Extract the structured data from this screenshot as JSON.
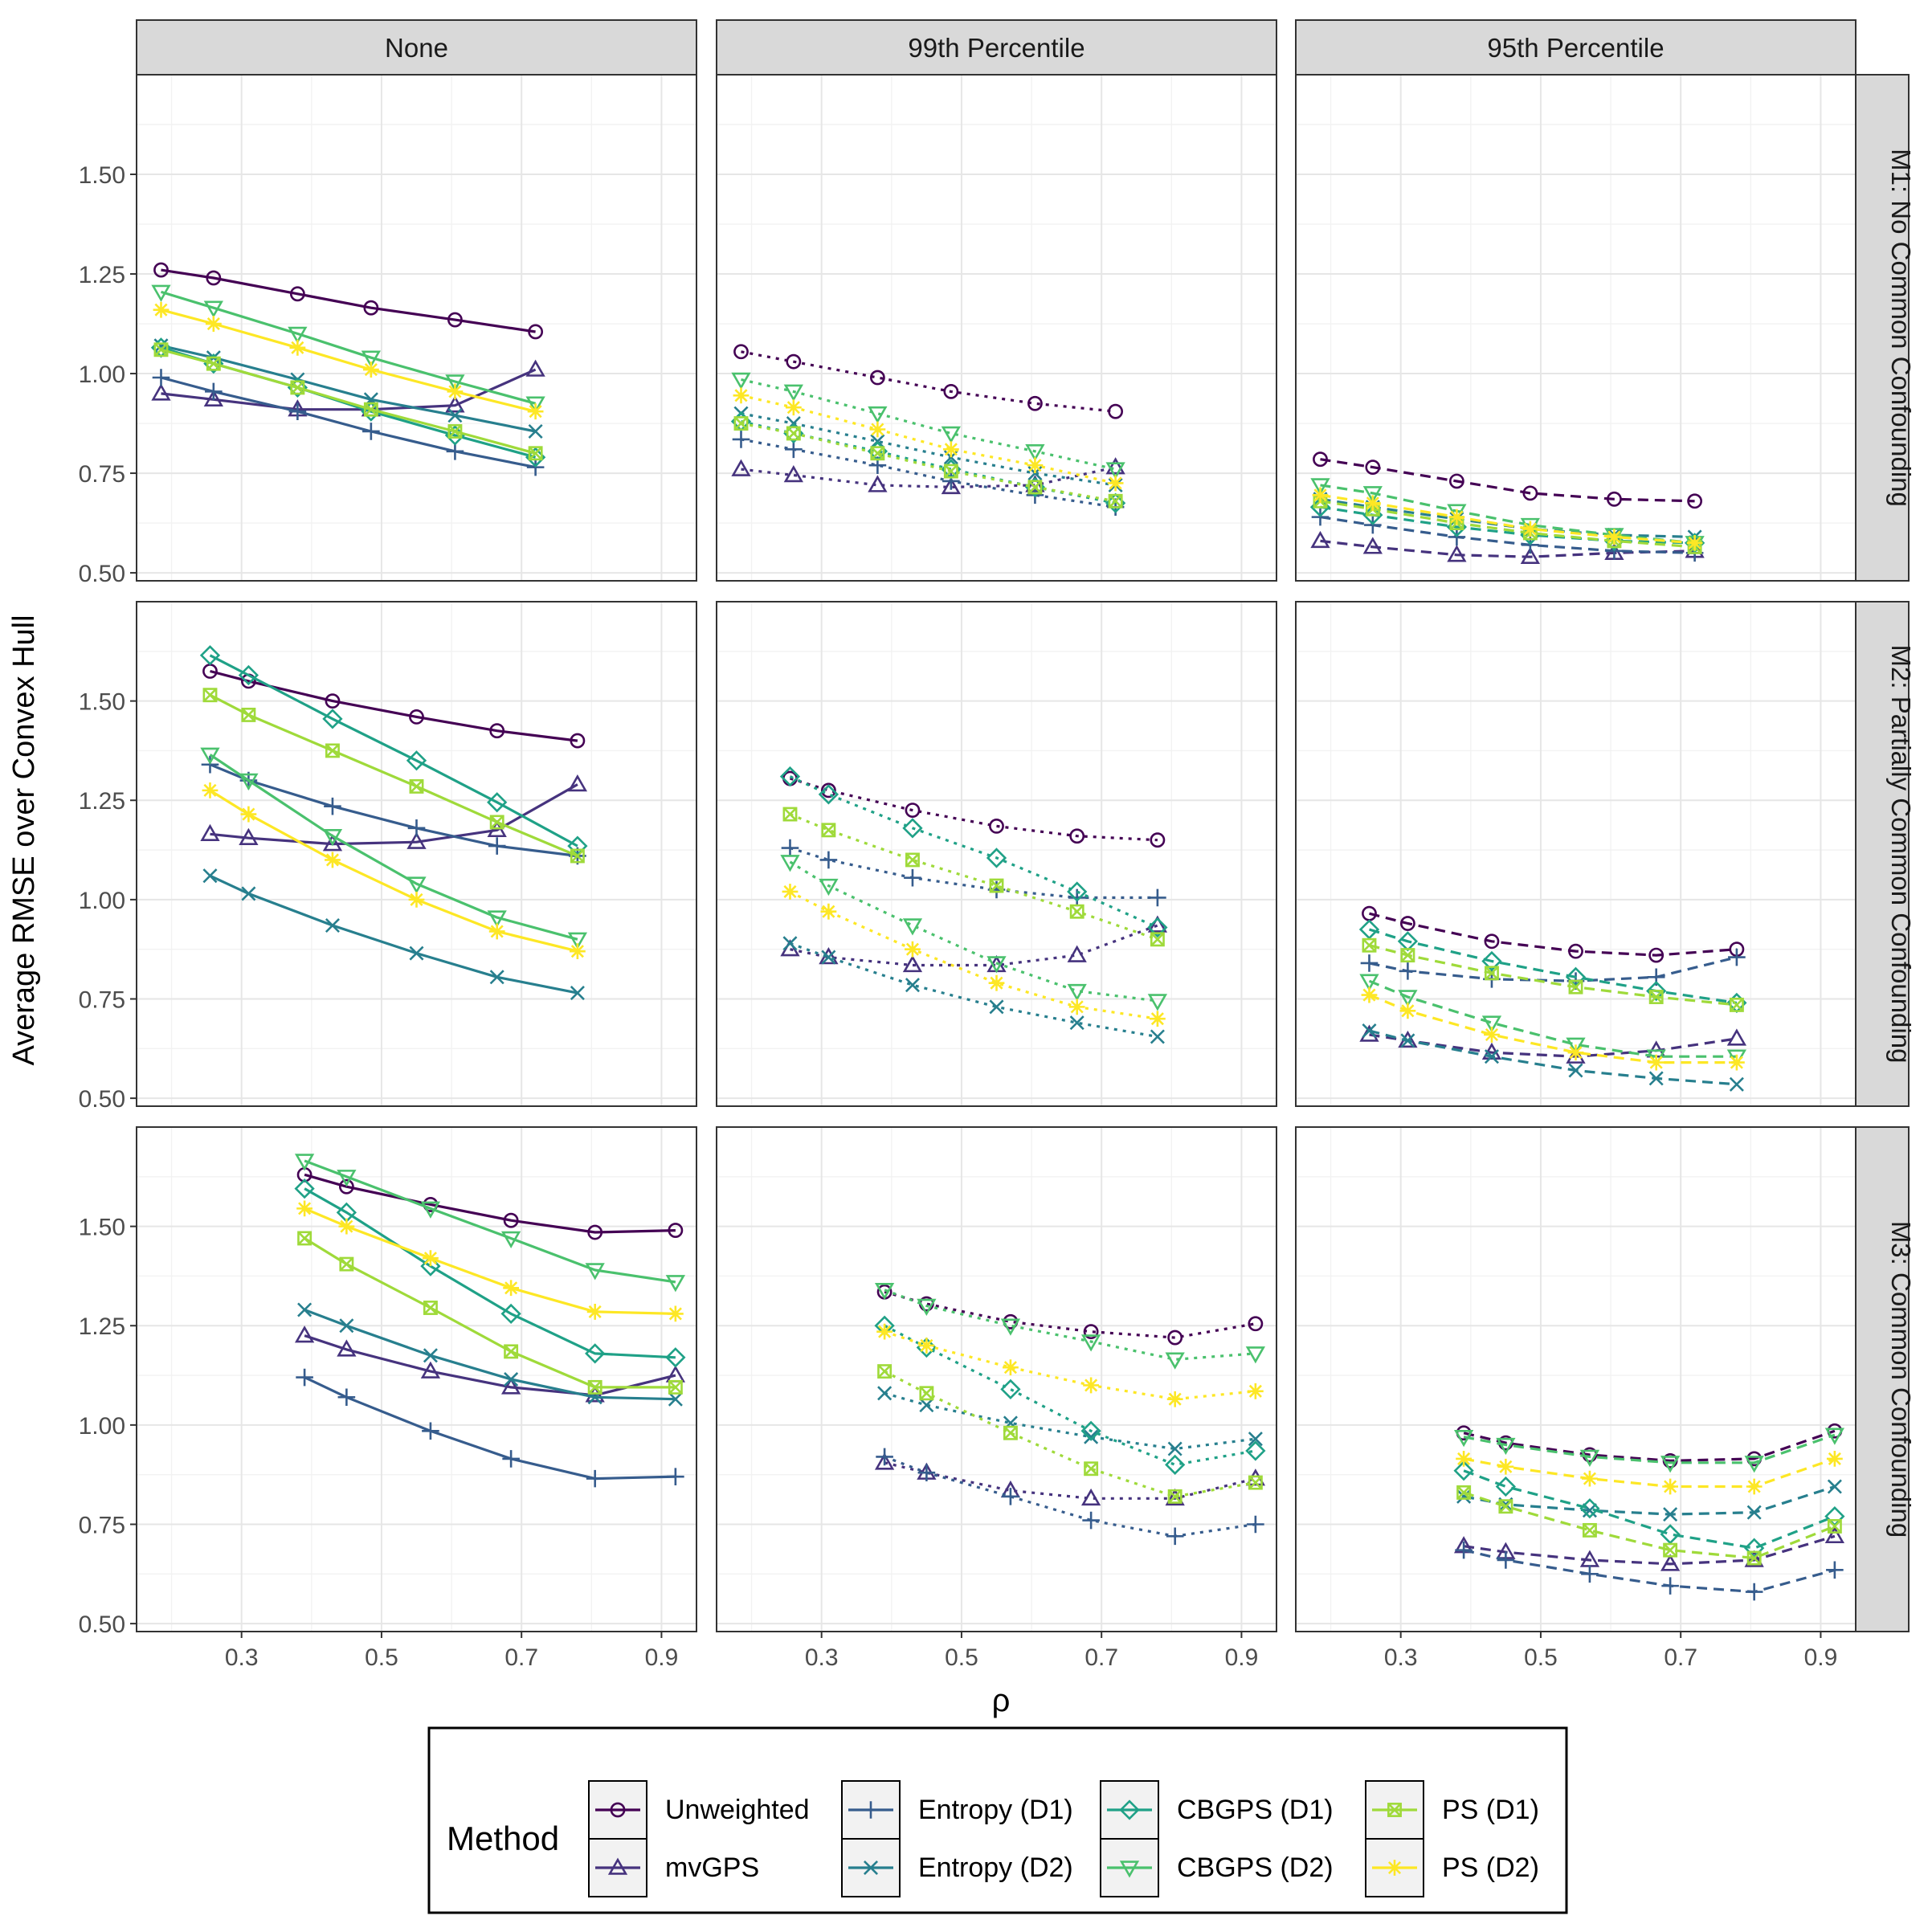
{
  "chart_data": {
    "type": "line",
    "xlabel": "ρ",
    "ylabel": "Average RMSE over Convex Hull",
    "xlim": [
      0.15,
      0.95
    ],
    "ylim": [
      0.48,
      1.75
    ],
    "x_ticks": [
      0.3,
      0.5,
      0.7,
      0.9
    ],
    "x_tick_labels": [
      "0.3",
      "0.5",
      "0.7",
      "0.9"
    ],
    "y_ticks": [
      0.5,
      0.75,
      1.0,
      1.25,
      1.5
    ],
    "y_tick_labels": [
      "0.50",
      "0.75",
      "1.00",
      "1.25",
      "1.50"
    ],
    "col_strips": [
      "None",
      "99th Percentile",
      "95th Percentile"
    ],
    "row_strips": [
      "M1: No Common Confounding",
      "M2: Partially Common Confounding",
      "M3: Common Confounding"
    ],
    "legend": {
      "title": "Method",
      "position": "bottom",
      "entries": [
        "Unweighted",
        "mvGPS",
        "Entropy (D1)",
        "Entropy (D2)",
        "CBGPS (D1)",
        "CBGPS (D2)",
        "PS (D1)",
        "PS (D2)"
      ]
    },
    "methods": [
      {
        "name": "Unweighted",
        "color": "#440154",
        "marker": "circle"
      },
      {
        "name": "mvGPS",
        "color": "#46337E",
        "marker": "triangle"
      },
      {
        "name": "Entropy (D1)",
        "color": "#365C8D",
        "marker": "plus"
      },
      {
        "name": "Entropy (D2)",
        "color": "#277F8E",
        "marker": "cross"
      },
      {
        "name": "CBGPS (D1)",
        "color": "#1FA187",
        "marker": "diamond"
      },
      {
        "name": "CBGPS (D2)",
        "color": "#4AC16D",
        "marker": "triangle-down"
      },
      {
        "name": "PS (D1)",
        "color": "#9FDA3A",
        "marker": "square-cross"
      },
      {
        "name": "PS (D2)",
        "color": "#FDE725",
        "marker": "asterisk"
      }
    ],
    "panels": [
      {
        "row": 0,
        "col": 0,
        "line_style": "solid",
        "x": [
          0.185,
          0.26,
          0.38,
          0.485,
          0.605,
          0.72
        ],
        "series": [
          {
            "name": "Unweighted",
            "values": [
              1.26,
              1.24,
              1.2,
              1.165,
              1.135,
              1.105
            ]
          },
          {
            "name": "mvGPS",
            "values": [
              0.95,
              0.935,
              0.91,
              0.91,
              0.92,
              1.01
            ]
          },
          {
            "name": "Entropy (D1)",
            "values": [
              0.99,
              0.955,
              0.905,
              0.855,
              0.805,
              0.765
            ]
          },
          {
            "name": "Entropy (D2)",
            "values": [
              1.07,
              1.04,
              0.985,
              0.935,
              0.895,
              0.855
            ]
          },
          {
            "name": "CBGPS (D1)",
            "values": [
              1.065,
              1.025,
              0.965,
              0.905,
              0.845,
              0.79
            ]
          },
          {
            "name": "CBGPS (D2)",
            "values": [
              1.205,
              1.165,
              1.1,
              1.04,
              0.98,
              0.925
            ]
          },
          {
            "name": "PS (D1)",
            "values": [
              1.06,
              1.025,
              0.965,
              0.91,
              0.855,
              0.8
            ]
          },
          {
            "name": "PS (D2)",
            "values": [
              1.16,
              1.125,
              1.065,
              1.01,
              0.955,
              0.905
            ]
          }
        ]
      },
      {
        "row": 0,
        "col": 1,
        "line_style": "dotted",
        "x": [
          0.185,
          0.26,
          0.38,
          0.485,
          0.605,
          0.72
        ],
        "series": [
          {
            "name": "Unweighted",
            "values": [
              1.055,
              1.03,
              0.99,
              0.955,
              0.925,
              0.905
            ]
          },
          {
            "name": "mvGPS",
            "values": [
              0.76,
              0.745,
              0.72,
              0.715,
              0.72,
              0.765
            ]
          },
          {
            "name": "Entropy (D1)",
            "values": [
              0.835,
              0.81,
              0.77,
              0.73,
              0.695,
              0.665
            ]
          },
          {
            "name": "Entropy (D2)",
            "values": [
              0.9,
              0.875,
              0.83,
              0.79,
              0.75,
              0.72
            ]
          },
          {
            "name": "CBGPS (D1)",
            "values": [
              0.88,
              0.85,
              0.805,
              0.76,
              0.715,
              0.675
            ]
          },
          {
            "name": "CBGPS (D2)",
            "values": [
              0.985,
              0.955,
              0.9,
              0.85,
              0.805,
              0.76
            ]
          },
          {
            "name": "PS (D1)",
            "values": [
              0.875,
              0.85,
              0.8,
              0.755,
              0.715,
              0.68
            ]
          },
          {
            "name": "PS (D2)",
            "values": [
              0.945,
              0.915,
              0.86,
              0.81,
              0.77,
              0.725
            ]
          }
        ]
      },
      {
        "row": 0,
        "col": 2,
        "line_style": "dashed",
        "x": [
          0.185,
          0.26,
          0.38,
          0.485,
          0.605,
          0.72
        ],
        "series": [
          {
            "name": "Unweighted",
            "values": [
              0.785,
              0.765,
              0.73,
              0.7,
              0.685,
              0.68
            ]
          },
          {
            "name": "mvGPS",
            "values": [
              0.58,
              0.565,
              0.545,
              0.54,
              0.55,
              0.555
            ]
          },
          {
            "name": "Entropy (D1)",
            "values": [
              0.64,
              0.62,
              0.59,
              0.57,
              0.555,
              0.55
            ]
          },
          {
            "name": "Entropy (D2)",
            "values": [
              0.685,
              0.665,
              0.635,
              0.61,
              0.595,
              0.59
            ]
          },
          {
            "name": "CBGPS (D1)",
            "values": [
              0.665,
              0.645,
              0.615,
              0.595,
              0.58,
              0.575
            ]
          },
          {
            "name": "CBGPS (D2)",
            "values": [
              0.72,
              0.7,
              0.655,
              0.62,
              0.595,
              0.575
            ]
          },
          {
            "name": "PS (D1)",
            "values": [
              0.68,
              0.66,
              0.625,
              0.6,
              0.58,
              0.565
            ]
          },
          {
            "name": "PS (D2)",
            "values": [
              0.695,
              0.675,
              0.64,
              0.61,
              0.59,
              0.575
            ]
          }
        ]
      },
      {
        "row": 1,
        "col": 0,
        "line_style": "solid",
        "x": [
          0.255,
          0.31,
          0.43,
          0.55,
          0.665,
          0.78
        ],
        "series": [
          {
            "name": "Unweighted",
            "values": [
              1.575,
              1.55,
              1.5,
              1.46,
              1.425,
              1.4
            ]
          },
          {
            "name": "mvGPS",
            "values": [
              1.165,
              1.155,
              1.14,
              1.145,
              1.175,
              1.29
            ]
          },
          {
            "name": "Entropy (D1)",
            "values": [
              1.34,
              1.3,
              1.235,
              1.18,
              1.135,
              1.11
            ]
          },
          {
            "name": "Entropy (D2)",
            "values": [
              1.06,
              1.015,
              0.935,
              0.865,
              0.805,
              0.765
            ]
          },
          {
            "name": "CBGPS (D1)",
            "values": [
              1.615,
              1.565,
              1.455,
              1.35,
              1.245,
              1.135
            ]
          },
          {
            "name": "CBGPS (D2)",
            "values": [
              1.365,
              1.3,
              1.16,
              1.04,
              0.955,
              0.9
            ]
          },
          {
            "name": "PS (D1)",
            "values": [
              1.515,
              1.465,
              1.375,
              1.285,
              1.195,
              1.11
            ]
          },
          {
            "name": "PS (D2)",
            "values": [
              1.275,
              1.215,
              1.1,
              1.0,
              0.92,
              0.87
            ]
          }
        ]
      },
      {
        "row": 1,
        "col": 1,
        "line_style": "dotted",
        "x": [
          0.255,
          0.31,
          0.43,
          0.55,
          0.665,
          0.78
        ],
        "series": [
          {
            "name": "Unweighted",
            "values": [
              1.305,
              1.275,
              1.225,
              1.185,
              1.16,
              1.15
            ]
          },
          {
            "name": "mvGPS",
            "values": [
              0.875,
              0.855,
              0.835,
              0.835,
              0.86,
              0.935
            ]
          },
          {
            "name": "Entropy (D1)",
            "values": [
              1.13,
              1.1,
              1.055,
              1.025,
              1.005,
              1.005
            ]
          },
          {
            "name": "Entropy (D2)",
            "values": [
              0.89,
              0.855,
              0.785,
              0.73,
              0.69,
              0.655
            ]
          },
          {
            "name": "CBGPS (D1)",
            "values": [
              1.31,
              1.265,
              1.18,
              1.105,
              1.02,
              0.93
            ]
          },
          {
            "name": "CBGPS (D2)",
            "values": [
              1.095,
              1.035,
              0.935,
              0.84,
              0.77,
              0.745
            ]
          },
          {
            "name": "PS (D1)",
            "values": [
              1.215,
              1.175,
              1.1,
              1.035,
              0.97,
              0.9
            ]
          },
          {
            "name": "PS (D2)",
            "values": [
              1.02,
              0.97,
              0.875,
              0.79,
              0.73,
              0.7
            ]
          }
        ]
      },
      {
        "row": 1,
        "col": 2,
        "line_style": "dashed",
        "x": [
          0.255,
          0.31,
          0.43,
          0.55,
          0.665,
          0.78
        ],
        "series": [
          {
            "name": "Unweighted",
            "values": [
              0.965,
              0.94,
              0.895,
              0.87,
              0.86,
              0.875
            ]
          },
          {
            "name": "mvGPS",
            "values": [
              0.66,
              0.645,
              0.615,
              0.605,
              0.62,
              0.65
            ]
          },
          {
            "name": "Entropy (D1)",
            "values": [
              0.84,
              0.82,
              0.8,
              0.795,
              0.805,
              0.855
            ]
          },
          {
            "name": "Entropy (D2)",
            "values": [
              0.67,
              0.645,
              0.605,
              0.57,
              0.55,
              0.535
            ]
          },
          {
            "name": "CBGPS (D1)",
            "values": [
              0.925,
              0.895,
              0.845,
              0.805,
              0.77,
              0.74
            ]
          },
          {
            "name": "CBGPS (D2)",
            "values": [
              0.795,
              0.755,
              0.69,
              0.635,
              0.605,
              0.605
            ]
          },
          {
            "name": "PS (D1)",
            "values": [
              0.885,
              0.86,
              0.815,
              0.78,
              0.755,
              0.735
            ]
          },
          {
            "name": "PS (D2)",
            "values": [
              0.76,
              0.72,
              0.66,
              0.615,
              0.59,
              0.59
            ]
          }
        ]
      },
      {
        "row": 2,
        "col": 0,
        "line_style": "solid",
        "x": [
          0.39,
          0.45,
          0.57,
          0.685,
          0.805,
          0.92
        ],
        "series": [
          {
            "name": "Unweighted",
            "values": [
              1.63,
              1.6,
              1.555,
              1.515,
              1.485,
              1.49
            ]
          },
          {
            "name": "mvGPS",
            "values": [
              1.225,
              1.19,
              1.135,
              1.095,
              1.075,
              1.125
            ]
          },
          {
            "name": "Entropy (D1)",
            "values": [
              1.12,
              1.07,
              0.985,
              0.915,
              0.865,
              0.87
            ]
          },
          {
            "name": "Entropy (D2)",
            "values": [
              1.29,
              1.25,
              1.175,
              1.115,
              1.07,
              1.065
            ]
          },
          {
            "name": "CBGPS (D1)",
            "values": [
              1.595,
              1.535,
              1.4,
              1.28,
              1.18,
              1.17
            ]
          },
          {
            "name": "CBGPS (D2)",
            "values": [
              1.665,
              1.625,
              1.545,
              1.47,
              1.39,
              1.36
            ]
          },
          {
            "name": "PS (D1)",
            "values": [
              1.47,
              1.405,
              1.295,
              1.185,
              1.095,
              1.095
            ]
          },
          {
            "name": "PS (D2)",
            "values": [
              1.545,
              1.5,
              1.42,
              1.345,
              1.285,
              1.28
            ]
          }
        ]
      },
      {
        "row": 2,
        "col": 1,
        "line_style": "dotted",
        "x": [
          0.39,
          0.45,
          0.57,
          0.685,
          0.805,
          0.92
        ],
        "series": [
          {
            "name": "Unweighted",
            "values": [
              1.335,
              1.305,
              1.26,
              1.235,
              1.22,
              1.255
            ]
          },
          {
            "name": "mvGPS",
            "values": [
              0.905,
              0.88,
              0.835,
              0.815,
              0.815,
              0.865
            ]
          },
          {
            "name": "Entropy (D1)",
            "values": [
              0.92,
              0.88,
              0.82,
              0.76,
              0.72,
              0.75
            ]
          },
          {
            "name": "Entropy (D2)",
            "values": [
              1.08,
              1.05,
              1.005,
              0.97,
              0.94,
              0.965
            ]
          },
          {
            "name": "CBGPS (D1)",
            "values": [
              1.25,
              1.195,
              1.09,
              0.985,
              0.9,
              0.935
            ]
          },
          {
            "name": "CBGPS (D2)",
            "values": [
              1.34,
              1.3,
              1.25,
              1.21,
              1.165,
              1.18
            ]
          },
          {
            "name": "PS (D1)",
            "values": [
              1.135,
              1.08,
              0.98,
              0.89,
              0.82,
              0.855
            ]
          },
          {
            "name": "PS (D2)",
            "values": [
              1.235,
              1.2,
              1.145,
              1.1,
              1.065,
              1.085
            ]
          }
        ]
      },
      {
        "row": 2,
        "col": 2,
        "line_style": "dashed",
        "x": [
          0.39,
          0.45,
          0.57,
          0.685,
          0.805,
          0.92
        ],
        "series": [
          {
            "name": "Unweighted",
            "values": [
              0.98,
              0.955,
              0.925,
              0.91,
              0.915,
              0.985
            ]
          },
          {
            "name": "mvGPS",
            "values": [
              0.695,
              0.68,
              0.66,
              0.65,
              0.66,
              0.72
            ]
          },
          {
            "name": "Entropy (D1)",
            "values": [
              0.685,
              0.66,
              0.625,
              0.595,
              0.58,
              0.635
            ]
          },
          {
            "name": "Entropy (D2)",
            "values": [
              0.82,
              0.8,
              0.785,
              0.775,
              0.78,
              0.845
            ]
          },
          {
            "name": "CBGPS (D1)",
            "values": [
              0.885,
              0.845,
              0.79,
              0.725,
              0.69,
              0.77
            ]
          },
          {
            "name": "CBGPS (D2)",
            "values": [
              0.97,
              0.95,
              0.92,
              0.905,
              0.905,
              0.975
            ]
          },
          {
            "name": "PS (D1)",
            "values": [
              0.83,
              0.795,
              0.735,
              0.685,
              0.665,
              0.745
            ]
          },
          {
            "name": "PS (D2)",
            "values": [
              0.915,
              0.895,
              0.865,
              0.845,
              0.845,
              0.915
            ]
          }
        ]
      }
    ]
  }
}
